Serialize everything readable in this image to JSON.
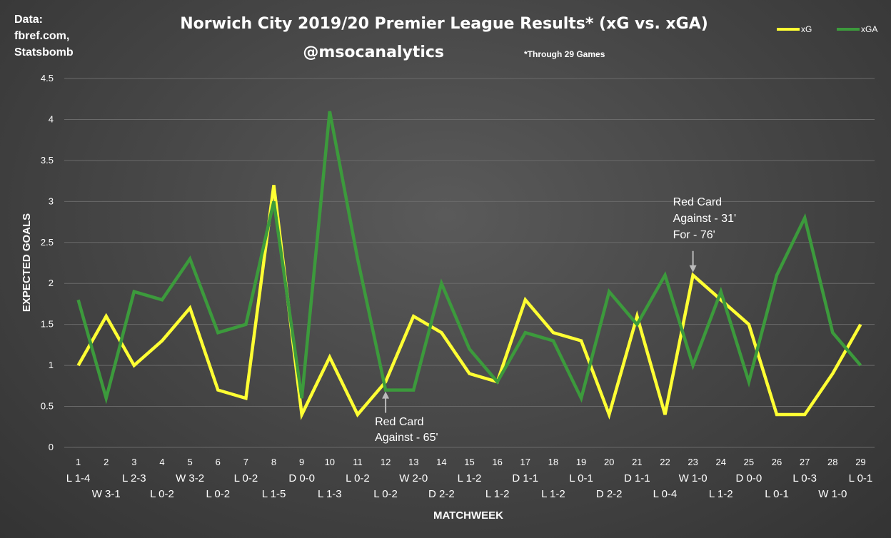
{
  "source_text": [
    "Data:",
    "fbref.com,",
    "Statsbomb"
  ],
  "chart_data": {
    "type": "line",
    "title": "Norwich City 2019/20 Premier League Results* (xG vs. xGA)",
    "subtitle": "@msocanalytics",
    "note": "*Through 29 Games",
    "xlabel": "MATCHWEEK",
    "ylabel": "EXPECTED GOALS",
    "ylim": [
      0,
      4.5
    ],
    "yticks": [
      "0",
      "0.5",
      "1",
      "1.5",
      "2",
      "2.5",
      "3",
      "3.5",
      "4",
      "4.5"
    ],
    "grid": true,
    "legend_position": "top-right",
    "categories": [
      "1",
      "2",
      "3",
      "4",
      "5",
      "6",
      "7",
      "8",
      "9",
      "10",
      "11",
      "12",
      "13",
      "14",
      "15",
      "16",
      "17",
      "18",
      "19",
      "20",
      "21",
      "22",
      "23",
      "24",
      "25",
      "26",
      "27",
      "28",
      "29"
    ],
    "results": [
      "L 1-4",
      "W 3-1",
      "L 2-3",
      "L 0-2",
      "W 3-2",
      "L 0-2",
      "L 0-2",
      "L 1-5",
      "D 0-0",
      "L 1-3",
      "L 0-2",
      "L 0-2",
      "W 2-0",
      "D 2-2",
      "L 1-2",
      "L 1-2",
      "D 1-1",
      "L 1-2",
      "L 0-1",
      "D 2-2",
      "D 1-1",
      "L 0-4",
      "W 1-0",
      "L 1-2",
      "D 0-0",
      "L 0-1",
      "L 0-3",
      "W 1-0",
      "L 0-1"
    ],
    "series": [
      {
        "name": "xG",
        "color": "#ffff33",
        "values": [
          1.0,
          1.6,
          1.0,
          1.3,
          1.7,
          0.7,
          0.6,
          3.2,
          0.4,
          1.1,
          0.4,
          0.8,
          1.6,
          1.4,
          0.9,
          0.8,
          1.8,
          1.4,
          1.3,
          0.4,
          1.6,
          0.4,
          2.1,
          1.8,
          1.5,
          0.4,
          0.4,
          0.9,
          1.5
        ]
      },
      {
        "name": "xGA",
        "color": "#3c9a3c",
        "values": [
          1.8,
          0.6,
          1.9,
          1.8,
          2.3,
          1.4,
          1.5,
          3.0,
          0.6,
          4.1,
          2.3,
          0.7,
          0.7,
          2.0,
          1.2,
          0.8,
          1.4,
          1.3,
          0.6,
          1.9,
          1.5,
          2.1,
          1.0,
          1.9,
          0.8,
          2.1,
          2.8,
          1.4,
          1.0
        ]
      }
    ],
    "annotations": [
      {
        "text": [
          "Red Card",
          "Against - 65'"
        ],
        "matchweek": 12,
        "value": 0.7
      },
      {
        "text": [
          "Red Card",
          "Against - 31'",
          "For - 76'"
        ],
        "matchweek": 23,
        "value": 2.1
      }
    ]
  }
}
